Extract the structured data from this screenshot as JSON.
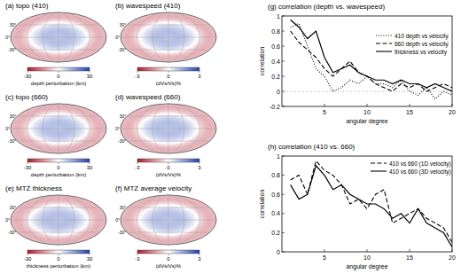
{
  "chart_data": [
    {
      "type": "map",
      "title": "(a) topo (410)",
      "ylim": [
        -90,
        90
      ],
      "yticks": [
        {
          "value": 30,
          "label": "30°"
        },
        {
          "value": 0,
          "label": "0°"
        },
        {
          "value": -30,
          "label": "-30°"
        }
      ],
      "colorbar": {
        "label": "depth perturbation (km)",
        "range": [
          -30,
          30
        ],
        "ticks": [
          -30,
          0,
          30
        ],
        "colors": [
          "#b2182b",
          "#ffffff",
          "#2140b0"
        ]
      }
    },
    {
      "type": "map",
      "title": "(b) wavespeed (410)",
      "ylim": [
        -90,
        90
      ],
      "yticks": [
        {
          "value": 30,
          "label": "30°"
        },
        {
          "value": 0,
          "label": "0°"
        },
        {
          "value": -30,
          "label": "-30°"
        }
      ],
      "colorbar": {
        "label": "(dVs/Vs)%",
        "range": [
          -3,
          3
        ],
        "ticks": [
          -3,
          0,
          3
        ],
        "colors": [
          "#b2182b",
          "#ffffff",
          "#2140b0"
        ]
      }
    },
    {
      "type": "map",
      "title": "(c) topo (660)",
      "ylim": [
        -90,
        90
      ],
      "yticks": [
        {
          "value": 30,
          "label": "30°"
        },
        {
          "value": 0,
          "label": "0°"
        },
        {
          "value": -30,
          "label": "-30°"
        }
      ],
      "colorbar": {
        "label": "depth perturbation (km)",
        "range": [
          -30,
          30
        ],
        "ticks": [
          -30,
          0,
          30
        ],
        "colors": [
          "#b2182b",
          "#ffffff",
          "#2140b0"
        ]
      }
    },
    {
      "type": "map",
      "title": "(d) wavespeed (660)",
      "ylim": [
        -90,
        90
      ],
      "yticks": [
        {
          "value": 30,
          "label": "30°"
        },
        {
          "value": 0,
          "label": "0°"
        },
        {
          "value": -30,
          "label": "-30°"
        }
      ],
      "colorbar": {
        "label": "(dVs/Vs)%",
        "range": [
          -3,
          3
        ],
        "ticks": [
          -3,
          0,
          3
        ],
        "colors": [
          "#b2182b",
          "#ffffff",
          "#2140b0"
        ]
      }
    },
    {
      "type": "map",
      "title": "(e) MTZ thickness",
      "ylim": [
        -90,
        90
      ],
      "yticks": [
        {
          "value": 30,
          "label": "30°"
        },
        {
          "value": 0,
          "label": "0°"
        },
        {
          "value": -30,
          "label": "-30°"
        }
      ],
      "colorbar": {
        "label": "thickness perturbation (km)",
        "range": [
          -30,
          30
        ],
        "ticks": [
          -30,
          0,
          30
        ],
        "colors": [
          "#b2182b",
          "#ffffff",
          "#2140b0"
        ]
      }
    },
    {
      "type": "map",
      "title": "(f) MTZ average velocity",
      "ylim": [
        -90,
        90
      ],
      "yticks": [
        {
          "value": 30,
          "label": "30°"
        },
        {
          "value": 0,
          "label": "0°"
        },
        {
          "value": -30,
          "label": "-30°"
        }
      ],
      "colorbar": {
        "label": "(dVs/Vs)%",
        "range": [
          -3,
          3
        ],
        "ticks": [
          -3,
          0,
          3
        ],
        "colors": [
          "#b2182b",
          "#ffffff",
          "#2140b0"
        ]
      }
    },
    {
      "type": "line",
      "title": "(g) correlation (depth vs. wavespeed)",
      "x_label": "angular degree",
      "y_label": "correlation",
      "x": [
        1,
        2,
        3,
        4,
        5,
        6,
        7,
        8,
        9,
        10,
        11,
        12,
        13,
        14,
        15,
        16,
        17,
        18,
        19,
        20
      ],
      "xlim": [
        0,
        20
      ],
      "xticks": [
        5,
        10,
        15,
        20
      ],
      "ylim": [
        -0.2,
        1
      ],
      "yticks": [
        -0.2,
        0,
        0.2,
        0.4,
        0.6,
        0.8,
        1
      ],
      "legend": "right",
      "series": [
        {
          "name": "410 depth vs velocity",
          "color": "#000000",
          "line_style": "dotted",
          "values": [
            0.85,
            0.9,
            0.6,
            0.3,
            0.2,
            0.0,
            0.05,
            0.15,
            0.1,
            0.2,
            0.1,
            0.1,
            0.05,
            0.15,
            0.0,
            -0.05,
            0.05,
            -0.1,
            0.0,
            -0.05
          ]
        },
        {
          "name": "660 depth vs velocity",
          "color": "#000000",
          "line_style": "dashed",
          "values": [
            0.8,
            0.65,
            0.55,
            0.45,
            0.3,
            0.2,
            0.3,
            0.4,
            0.25,
            0.2,
            0.1,
            0.05,
            0.0,
            0.1,
            0.05,
            0.1,
            0.0,
            0.05,
            0.1,
            0.05
          ]
        },
        {
          "name": "thickness vs velocity",
          "color": "#000000",
          "line_style": "solid",
          "values": [
            0.95,
            0.85,
            0.7,
            0.8,
            0.45,
            0.25,
            0.3,
            0.35,
            0.25,
            0.2,
            0.15,
            0.15,
            0.1,
            0.15,
            0.1,
            0.1,
            0.05,
            0.1,
            0.05,
            0.0
          ]
        }
      ]
    },
    {
      "type": "line",
      "title": "(h) correlation (410 vs. 660)",
      "x_label": "angular degree",
      "y_label": "correlation",
      "x": [
        1,
        2,
        3,
        4,
        5,
        6,
        7,
        8,
        9,
        10,
        11,
        12,
        13,
        14,
        15,
        16,
        17,
        18,
        19,
        20
      ],
      "xlim": [
        0,
        20
      ],
      "xticks": [
        5,
        10,
        15,
        20
      ],
      "ylim": [
        0,
        1
      ],
      "yticks": [
        0,
        0.2,
        0.4,
        0.6,
        0.8,
        1
      ],
      "legend": "upper right",
      "series": [
        {
          "name": "410 vs 660 (1D velocity)",
          "color": "#000000",
          "line_style": "dashed",
          "values": [
            0.75,
            0.8,
            0.6,
            0.95,
            0.85,
            0.8,
            0.7,
            0.5,
            0.55,
            0.45,
            0.6,
            0.65,
            0.3,
            0.35,
            0.4,
            0.45,
            0.35,
            0.3,
            0.25,
            0.1
          ]
        },
        {
          "name": "410 vs 660 (3D velocity)",
          "color": "#000000",
          "line_style": "solid",
          "values": [
            0.7,
            0.55,
            0.6,
            0.9,
            0.8,
            0.65,
            0.7,
            0.6,
            0.55,
            0.5,
            0.5,
            0.45,
            0.35,
            0.4,
            0.3,
            0.45,
            0.3,
            0.25,
            0.2,
            0.05
          ]
        }
      ]
    }
  ]
}
